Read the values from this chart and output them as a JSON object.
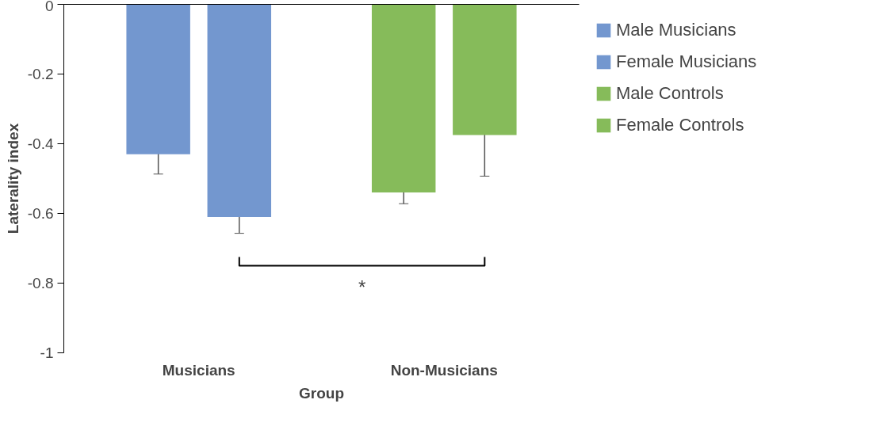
{
  "chart_data": {
    "type": "bar",
    "xlabel": "Group",
    "ylabel": "Laterality index",
    "categories": [
      "Musicians",
      "Non-Musicians"
    ],
    "series": [
      {
        "name": "Male Musicians",
        "color": "#7397cf",
        "values": [
          -0.43,
          null
        ],
        "errors": [
          0.057,
          null
        ]
      },
      {
        "name": "Female Musicians",
        "color": "#7397cf",
        "values": [
          -0.61,
          null
        ],
        "errors": [
          0.047,
          null
        ]
      },
      {
        "name": "Male Controls",
        "color": "#86bb5a",
        "values": [
          null,
          -0.54
        ],
        "errors": [
          null,
          0.032
        ]
      },
      {
        "name": "Female Controls",
        "color": "#86bb5a",
        "values": [
          null,
          -0.375
        ],
        "errors": [
          null,
          0.118
        ]
      }
    ],
    "ylim": [
      -1,
      0
    ],
    "yticks": [
      {
        "value": -1,
        "label": "-1"
      },
      {
        "value": -0.8,
        "label": "-0.8"
      },
      {
        "value": -0.6,
        "label": "-0.6"
      },
      {
        "value": -0.4,
        "label": "-0.4"
      },
      {
        "value": -0.2,
        "label": "-0.2"
      },
      {
        "value": 0,
        "label": "0"
      }
    ],
    "annotations": [
      "*"
    ],
    "grid": false,
    "legend": "right"
  }
}
